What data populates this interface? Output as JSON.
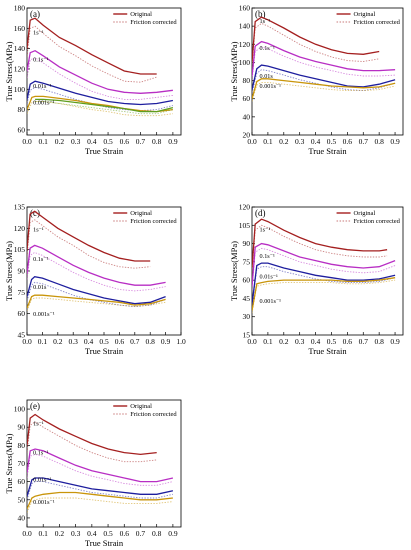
{
  "figure": {
    "legend": [
      "Original",
      "Friction corrected"
    ],
    "colors": {
      "1s-1": "#a41f1f",
      "0.1s-1": "#b82ec4",
      "0.01s-1": "#1e1e9e",
      "0.001s-1": "#c9950a",
      "extra": "#5f9e1e",
      "axis": "#000000"
    }
  },
  "chart_data": [
    {
      "type": "line",
      "panel_label": "(a)",
      "xlabel": "True Strain",
      "ylabel": "True Stress(MPa)",
      "xlim": [
        0.0,
        0.95
      ],
      "ylim": [
        55,
        180
      ],
      "xticks": [
        "0.0",
        "0.1",
        "0.2",
        "0.3",
        "0.4",
        "0.5",
        "0.6",
        "0.7",
        "0.8",
        "0.9"
      ],
      "yticks": [
        "60",
        "80",
        "100",
        "120",
        "140",
        "160",
        "180"
      ],
      "legend": [
        "Original",
        "Friction corrected"
      ],
      "rate_labels": [
        "1s⁻¹",
        "0.1s⁻¹",
        "0.01s⁻¹",
        "0.001s⁻¹"
      ],
      "series": [
        {
          "rate": "1s-1",
          "x": [
            0,
            0.02,
            0.05,
            0.1,
            0.2,
            0.3,
            0.4,
            0.5,
            0.6,
            0.7,
            0.8
          ],
          "original": [
            140,
            168,
            170,
            163,
            151,
            143,
            134,
            126,
            118,
            115,
            115
          ],
          "friction_corrected": [
            132,
            160,
            162,
            155,
            142,
            133,
            123,
            115,
            108,
            107,
            112
          ]
        },
        {
          "rate": "0.1s-1",
          "x": [
            0,
            0.02,
            0.05,
            0.1,
            0.2,
            0.3,
            0.4,
            0.5,
            0.6,
            0.7,
            0.8,
            0.9
          ],
          "original": [
            118,
            136,
            138,
            133,
            122,
            114,
            106,
            100,
            97,
            96,
            97,
            99
          ],
          "friction_corrected": [
            111,
            129,
            131,
            126,
            115,
            106,
            98,
            93,
            90,
            90,
            92,
            94
          ]
        },
        {
          "rate": "0.01s-1",
          "x": [
            0,
            0.02,
            0.05,
            0.1,
            0.2,
            0.3,
            0.4,
            0.5,
            0.6,
            0.7,
            0.8,
            0.9
          ],
          "original": [
            90,
            105,
            108,
            106,
            101,
            96,
            92,
            88,
            86,
            85,
            86,
            89
          ],
          "friction_corrected": [
            86,
            99,
            102,
            100,
            95,
            90,
            86,
            82,
            80,
            79,
            80,
            84
          ]
        },
        {
          "rate": "0.001s-1",
          "x": [
            0,
            0.03,
            0.05,
            0.1,
            0.2,
            0.3,
            0.4,
            0.5,
            0.6,
            0.7,
            0.8,
            0.9
          ],
          "original": [
            80,
            92,
            93,
            93,
            91,
            89,
            86,
            84,
            81,
            79,
            78,
            80
          ],
          "friction_corrected": [
            76,
            87,
            88,
            88,
            86,
            83,
            80,
            78,
            75,
            74,
            74,
            76
          ]
        },
        {
          "rate": "extra",
          "x": [
            0.05,
            0.1,
            0.2,
            0.3,
            0.4,
            0.5,
            0.6,
            0.7,
            0.8,
            0.9
          ],
          "original": [
            90,
            90,
            89,
            87,
            85,
            83,
            81,
            78,
            78,
            82
          ],
          "friction_corrected": [
            88,
            88,
            86,
            84,
            82,
            80,
            78,
            76,
            76,
            80
          ]
        }
      ]
    },
    {
      "type": "line",
      "panel_label": "(b)",
      "xlabel": "True Strain",
      "ylabel": "True Stress(MPa)",
      "xlim": [
        0.0,
        0.95
      ],
      "ylim": [
        20,
        160
      ],
      "xticks": [
        "0.0",
        "0.1",
        "0.2",
        "0.3",
        "0.4",
        "0.5",
        "0.6",
        "0.7",
        "0.8",
        "0.9"
      ],
      "yticks": [
        "20",
        "40",
        "60",
        "80",
        "100",
        "120",
        "140",
        "160"
      ],
      "legend": [
        "Original",
        "Friction corrected"
      ],
      "rate_labels": [
        "1s⁻¹",
        "0.1s⁻¹",
        "0.01s",
        "0.001s⁻¹"
      ],
      "series": [
        {
          "rate": "1s-1",
          "x": [
            0,
            0.02,
            0.06,
            0.1,
            0.2,
            0.3,
            0.4,
            0.5,
            0.6,
            0.7,
            0.8
          ],
          "original": [
            100,
            145,
            150,
            147,
            138,
            128,
            120,
            114,
            110,
            109,
            112
          ],
          "friction_corrected": [
            95,
            138,
            143,
            140,
            130,
            120,
            112,
            106,
            102,
            101,
            104
          ]
        },
        {
          "rate": "0.1s-1",
          "x": [
            0,
            0.02,
            0.06,
            0.1,
            0.2,
            0.3,
            0.4,
            0.5,
            0.6,
            0.7,
            0.8,
            0.9
          ],
          "original": [
            85,
            118,
            123,
            121,
            113,
            106,
            101,
            97,
            93,
            91,
            91,
            92
          ],
          "friction_corrected": [
            80,
            112,
            117,
            115,
            107,
            100,
            95,
            91,
            87,
            85,
            85,
            86
          ]
        },
        {
          "rate": "0.01s-1",
          "x": [
            0,
            0.03,
            0.06,
            0.1,
            0.2,
            0.3,
            0.4,
            0.5,
            0.6,
            0.7,
            0.8,
            0.9
          ],
          "original": [
            70,
            93,
            97,
            96,
            91,
            86,
            82,
            78,
            74,
            73,
            76,
            81
          ],
          "friction_corrected": [
            66,
            88,
            92,
            91,
            86,
            81,
            77,
            73,
            70,
            69,
            72,
            77
          ]
        },
        {
          "rate": "0.001s-1",
          "x": [
            0,
            0.03,
            0.06,
            0.1,
            0.2,
            0.3,
            0.4,
            0.5,
            0.6,
            0.7,
            0.8,
            0.9
          ],
          "original": [
            60,
            79,
            82,
            82,
            80,
            78,
            76,
            74,
            73,
            72,
            73,
            77
          ],
          "friction_corrected": [
            57,
            75,
            78,
            78,
            76,
            74,
            72,
            70,
            69,
            69,
            70,
            74
          ]
        }
      ]
    },
    {
      "type": "line",
      "panel_label": "(c)",
      "xlabel": "True Strain",
      "ylabel": "True Stress(MPa)",
      "xlim": [
        0.0,
        1.0
      ],
      "ylim": [
        45,
        135
      ],
      "xticks": [
        "0.0",
        "0.1",
        "0.2",
        "0.3",
        "0.4",
        "0.5",
        "0.6",
        "0.7",
        "0.8",
        "0.9",
        "1.0"
      ],
      "yticks": [
        "45",
        "60",
        "75",
        "90",
        "105",
        "120",
        "135"
      ],
      "legend": [
        "Original",
        "Friction corrected"
      ],
      "rate_labels": [
        "1s⁻¹",
        "0.1s⁻¹",
        "0.01s",
        "0.001s⁻¹"
      ],
      "series": [
        {
          "rate": "1s-1",
          "x": [
            0,
            0.02,
            0.05,
            0.1,
            0.2,
            0.3,
            0.4,
            0.5,
            0.6,
            0.7,
            0.8
          ],
          "original": [
            105,
            130,
            132,
            128,
            120,
            114,
            108,
            103,
            99,
            97,
            97
          ],
          "friction_corrected": [
            100,
            124,
            126,
            122,
            114,
            108,
            101,
            96,
            93,
            92,
            93
          ]
        },
        {
          "rate": "0.1s-1",
          "x": [
            0,
            0.02,
            0.05,
            0.1,
            0.2,
            0.3,
            0.4,
            0.5,
            0.6,
            0.7,
            0.8,
            0.9
          ],
          "original": [
            88,
            106,
            108,
            106,
            100,
            94,
            89,
            85,
            82,
            80,
            80,
            82
          ],
          "friction_corrected": [
            84,
            101,
            103,
            101,
            95,
            89,
            84,
            80,
            77,
            76,
            77,
            79
          ]
        },
        {
          "rate": "0.01s-1",
          "x": [
            0,
            0.03,
            0.05,
            0.1,
            0.2,
            0.3,
            0.4,
            0.5,
            0.6,
            0.7,
            0.8,
            0.9
          ],
          "original": [
            72,
            84,
            86,
            85,
            81,
            77,
            74,
            71,
            69,
            67,
            68,
            72
          ],
          "friction_corrected": [
            69,
            80,
            82,
            81,
            77,
            73,
            70,
            68,
            66,
            65,
            66,
            70
          ]
        },
        {
          "rate": "0.001s-1",
          "x": [
            0,
            0.03,
            0.05,
            0.1,
            0.2,
            0.3,
            0.4,
            0.5,
            0.6,
            0.7,
            0.8,
            0.9
          ],
          "original": [
            64,
            72,
            73,
            73,
            72,
            71,
            70,
            69,
            68,
            66,
            67,
            70
          ],
          "friction_corrected": [
            62,
            70,
            71,
            71,
            70,
            69,
            68,
            67,
            66,
            65,
            66,
            68
          ]
        }
      ]
    },
    {
      "type": "line",
      "panel_label": "(d)",
      "xlabel": "True Strain",
      "ylabel": "True Stress(MPa)",
      "xlim": [
        0.0,
        0.95
      ],
      "ylim": [
        15,
        120
      ],
      "xticks": [
        "0.0",
        "0.1",
        "0.2",
        "0.3",
        "0.4",
        "0.5",
        "0.6",
        "0.7",
        "0.8",
        "0.9"
      ],
      "yticks": [
        "15",
        "30",
        "45",
        "60",
        "75",
        "90",
        "105",
        "120"
      ],
      "legend": [
        "Original",
        "Friction corrected"
      ],
      "rate_labels": [
        "1s⁻¹",
        "0.1s⁻¹",
        "0.01s⁻¹",
        "0.001s⁻¹"
      ],
      "series": [
        {
          "rate": "1s-1",
          "x": [
            0,
            0.02,
            0.06,
            0.1,
            0.2,
            0.3,
            0.4,
            0.5,
            0.6,
            0.7,
            0.8,
            0.85
          ],
          "original": [
            70,
            106,
            110,
            108,
            101,
            95,
            90,
            87,
            85,
            84,
            84,
            85
          ],
          "friction_corrected": [
            66,
            101,
            105,
            103,
            96,
            90,
            85,
            82,
            80,
            79,
            79,
            80
          ]
        },
        {
          "rate": "0.1s-1",
          "x": [
            0,
            0.02,
            0.06,
            0.1,
            0.2,
            0.3,
            0.4,
            0.5,
            0.6,
            0.7,
            0.8,
            0.9
          ],
          "original": [
            55,
            87,
            90,
            89,
            84,
            79,
            76,
            73,
            71,
            70,
            71,
            76
          ],
          "friction_corrected": [
            52,
            83,
            86,
            85,
            80,
            75,
            72,
            69,
            67,
            66,
            67,
            72
          ]
        },
        {
          "rate": "0.01s-1",
          "x": [
            0,
            0.03,
            0.06,
            0.1,
            0.2,
            0.3,
            0.4,
            0.5,
            0.6,
            0.7,
            0.8,
            0.9
          ],
          "original": [
            40,
            72,
            74,
            74,
            70,
            67,
            64,
            62,
            60,
            60,
            61,
            64
          ],
          "friction_corrected": [
            38,
            69,
            71,
            71,
            67,
            64,
            61,
            59,
            58,
            58,
            59,
            62
          ]
        },
        {
          "rate": "0.001s-1",
          "x": [
            0,
            0.03,
            0.06,
            0.1,
            0.2,
            0.3,
            0.4,
            0.5,
            0.6,
            0.7,
            0.8,
            0.9
          ],
          "original": [
            35,
            57,
            58,
            59,
            60,
            60,
            60,
            60,
            59,
            59,
            60,
            62
          ],
          "friction_corrected": [
            33,
            55,
            56,
            57,
            58,
            58,
            58,
            58,
            57,
            57,
            58,
            60
          ]
        }
      ]
    },
    {
      "type": "line",
      "panel_label": "(e)",
      "xlabel": "True Strain",
      "ylabel": "True Stress(MPa)",
      "xlim": [
        0.0,
        0.95
      ],
      "ylim": [
        35,
        105
      ],
      "xticks": [
        "0.0",
        "0.1",
        "0.2",
        "0.3",
        "0.4",
        "0.5",
        "0.6",
        "0.7",
        "0.8",
        "0.9"
      ],
      "yticks": [
        "40",
        "50",
        "60",
        "70",
        "80",
        "90",
        "100"
      ],
      "legend": [
        "Original",
        "Friction corrected"
      ],
      "rate_labels": [
        "1s⁻¹",
        "0.1s⁻¹",
        "0.01s⁻¹",
        "0.001s⁻¹"
      ],
      "series": [
        {
          "rate": "1s-1",
          "x": [
            0,
            0.02,
            0.05,
            0.1,
            0.2,
            0.3,
            0.4,
            0.5,
            0.6,
            0.7,
            0.8
          ],
          "original": [
            80,
            95,
            97,
            94,
            89,
            85,
            81,
            78,
            76,
            75,
            76
          ],
          "friction_corrected": [
            76,
            91,
            93,
            90,
            85,
            80,
            76,
            73,
            71,
            71,
            72
          ]
        },
        {
          "rate": "0.1s-1",
          "x": [
            0,
            0.02,
            0.05,
            0.1,
            0.2,
            0.3,
            0.4,
            0.5,
            0.6,
            0.7,
            0.8,
            0.9
          ],
          "original": [
            65,
            77,
            78,
            77,
            73,
            69,
            66,
            64,
            62,
            60,
            60,
            62
          ],
          "friction_corrected": [
            62,
            74,
            75,
            74,
            70,
            66,
            63,
            61,
            59,
            58,
            58,
            60
          ]
        },
        {
          "rate": "0.01s-1",
          "x": [
            0,
            0.03,
            0.05,
            0.1,
            0.2,
            0.3,
            0.4,
            0.5,
            0.6,
            0.7,
            0.8,
            0.9
          ],
          "original": [
            52,
            61,
            62,
            62,
            60,
            58,
            56,
            55,
            54,
            53,
            53,
            55
          ],
          "friction_corrected": [
            50,
            59,
            60,
            60,
            58,
            56,
            54,
            53,
            52,
            51,
            51,
            53
          ]
        },
        {
          "rate": "0.001s-1",
          "x": [
            0,
            0.03,
            0.05,
            0.1,
            0.2,
            0.3,
            0.4,
            0.5,
            0.6,
            0.7,
            0.8,
            0.9
          ],
          "original": [
            45,
            51,
            52,
            53,
            54,
            54,
            53,
            52,
            51,
            50,
            50,
            51
          ],
          "friction_corrected": [
            43,
            49,
            50,
            51,
            51,
            51,
            50,
            49,
            48,
            48,
            48,
            49
          ]
        }
      ]
    }
  ]
}
